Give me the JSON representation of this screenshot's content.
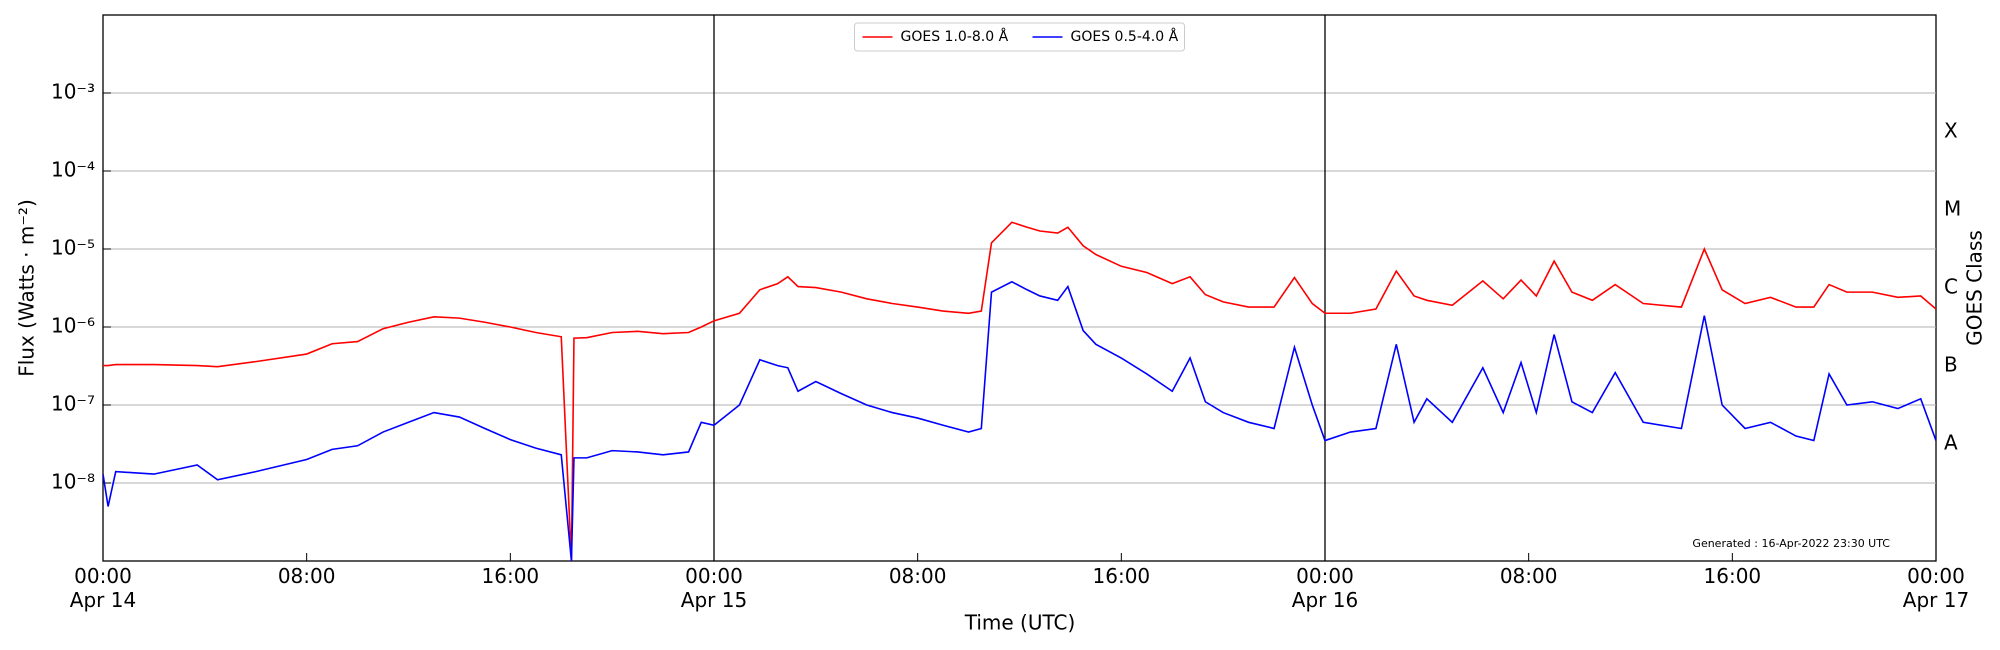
{
  "chart_data": {
    "type": "line",
    "x_label": "Time (UTC)",
    "y_label": "Flux (Watts · m⁻²)",
    "y2_label": "GOES Class",
    "annotation": "Generated : 16-Apr-2022 23:30 UTC",
    "log_y": true,
    "grid": true,
    "legend": "upper center",
    "xlim": [
      0,
      72
    ],
    "xticks": [
      {
        "value": 0,
        "label": "00:00\nApr 14"
      },
      {
        "value": 8,
        "label": "08:00"
      },
      {
        "value": 16,
        "label": "16:00"
      },
      {
        "value": 24,
        "label": "00:00\nApr 15"
      },
      {
        "value": 32,
        "label": "08:00"
      },
      {
        "value": 40,
        "label": "16:00"
      },
      {
        "value": 48,
        "label": "00:00\nApr 16"
      },
      {
        "value": 56,
        "label": "08:00"
      },
      {
        "value": 64,
        "label": "16:00"
      },
      {
        "value": 72,
        "label": "00:00\nApr 17"
      }
    ],
    "day_lines": [
      24,
      48
    ],
    "ylim": [
      1e-09,
      0.01
    ],
    "yticks": [
      {
        "value": 1e-08,
        "label": "10⁻⁸"
      },
      {
        "value": 1e-07,
        "label": "10⁻⁷"
      },
      {
        "value": 1e-06,
        "label": "10⁻⁶"
      },
      {
        "value": 1e-05,
        "label": "10⁻⁵"
      },
      {
        "value": 0.0001,
        "label": "10⁻⁴"
      },
      {
        "value": 0.001,
        "label": "10⁻³"
      }
    ],
    "y2lim": [
      1e-09,
      0.01
    ],
    "y2ticks": [
      {
        "value": 3.16e-08,
        "label": "A"
      },
      {
        "value": 3.16e-07,
        "label": "B"
      },
      {
        "value": 3.16e-06,
        "label": "C"
      },
      {
        "value": 3.16e-05,
        "label": "M"
      },
      {
        "value": 0.000316,
        "label": "X"
      }
    ],
    "x": [
      0,
      0.2,
      0.5,
      2,
      3.7,
      4.5,
      6,
      8,
      9,
      10,
      11,
      12,
      13,
      14,
      15,
      16,
      17,
      18,
      18.4,
      18.5,
      19,
      20,
      21,
      22,
      23,
      23.5,
      24,
      25,
      25.8,
      26.5,
      26.9,
      27.3,
      28,
      29,
      30,
      31,
      32,
      33,
      34,
      34.5,
      34.9,
      35.7,
      36.3,
      36.8,
      37.5,
      37.9,
      38.5,
      39,
      40,
      41,
      42,
      42.7,
      43.3,
      44,
      45,
      46,
      46.8,
      47.5,
      48,
      49,
      50,
      50.8,
      51.5,
      52,
      53,
      54.2,
      55,
      55.7,
      56.3,
      57,
      57.7,
      58.5,
      59.4,
      60.5,
      62,
      62.9,
      63.6,
      64.5,
      65.5,
      66.5,
      67.2,
      67.8,
      68.5,
      69.5,
      70.5,
      71.4,
      72
    ],
    "series": [
      {
        "name": "GOES 1.0-8.0 Å",
        "color": "#ff0000",
        "values": [
          3.2e-07,
          3.2e-07,
          3.3e-07,
          3.3e-07,
          3.2e-07,
          3.1e-07,
          3.6e-07,
          4.5e-07,
          6.1e-07,
          6.5e-07,
          9.5e-07,
          1.15e-06,
          1.35e-06,
          1.3e-06,
          1.15e-06,
          1e-06,
          8.5e-07,
          7.5e-07,
          1e-09,
          7.2e-07,
          7.3e-07,
          8.5e-07,
          8.8e-07,
          8.2e-07,
          8.5e-07,
          1e-06,
          1.2e-06,
          1.5e-06,
          3e-06,
          3.6e-06,
          4.4e-06,
          3.3e-06,
          3.2e-06,
          2.8e-06,
          2.3e-06,
          2e-06,
          1.8e-06,
          1.6e-06,
          1.5e-06,
          1.6e-06,
          1.2e-05,
          2.2e-05,
          1.9e-05,
          1.7e-05,
          1.6e-05,
          1.9e-05,
          1.1e-05,
          8.5e-06,
          6e-06,
          5e-06,
          3.6e-06,
          4.4e-06,
          2.6e-06,
          2.1e-06,
          1.8e-06,
          1.8e-06,
          4.3e-06,
          2e-06,
          1.5e-06,
          1.5e-06,
          1.7e-06,
          5.2e-06,
          2.5e-06,
          2.2e-06,
          1.9e-06,
          3.9e-06,
          2.3e-06,
          4e-06,
          2.5e-06,
          7e-06,
          2.8e-06,
          2.2e-06,
          3.5e-06,
          2e-06,
          1.8e-06,
          1e-05,
          3e-06,
          2e-06,
          2.4e-06,
          1.8e-06,
          1.8e-06,
          3.5e-06,
          2.8e-06,
          2.8e-06,
          2.4e-06,
          2.5e-06,
          1.7e-06
        ]
      },
      {
        "name": "GOES 0.5-4.0 Å",
        "color": "#0000ff",
        "values": [
          1.3e-08,
          5e-09,
          1.4e-08,
          1.3e-08,
          1.7e-08,
          1.1e-08,
          1.4e-08,
          2e-08,
          2.7e-08,
          3e-08,
          4.5e-08,
          6e-08,
          8e-08,
          7e-08,
          5e-08,
          3.6e-08,
          2.8e-08,
          2.3e-08,
          1e-09,
          2.1e-08,
          2.1e-08,
          2.6e-08,
          2.5e-08,
          2.3e-08,
          2.5e-08,
          6e-08,
          5.5e-08,
          1e-07,
          3.8e-07,
          3.2e-07,
          3e-07,
          1.5e-07,
          2e-07,
          1.4e-07,
          1e-07,
          8e-08,
          6.8e-08,
          5.5e-08,
          4.5e-08,
          5e-08,
          2.8e-06,
          3.8e-06,
          3e-06,
          2.5e-06,
          2.2e-06,
          3.3e-06,
          9e-07,
          6e-07,
          4e-07,
          2.5e-07,
          1.5e-07,
          4e-07,
          1.1e-07,
          8e-08,
          6e-08,
          5e-08,
          5.5e-07,
          1e-07,
          3.5e-08,
          4.5e-08,
          5e-08,
          6e-07,
          6e-08,
          1.2e-07,
          6e-08,
          3e-07,
          8e-08,
          3.5e-07,
          8e-08,
          8e-07,
          1.1e-07,
          8e-08,
          2.6e-07,
          6e-08,
          5e-08,
          1.4e-06,
          1e-07,
          5e-08,
          6e-08,
          4e-08,
          3.5e-08,
          2.5e-07,
          1e-07,
          1.1e-07,
          9e-08,
          1.2e-07,
          3.5e-08
        ]
      }
    ]
  }
}
